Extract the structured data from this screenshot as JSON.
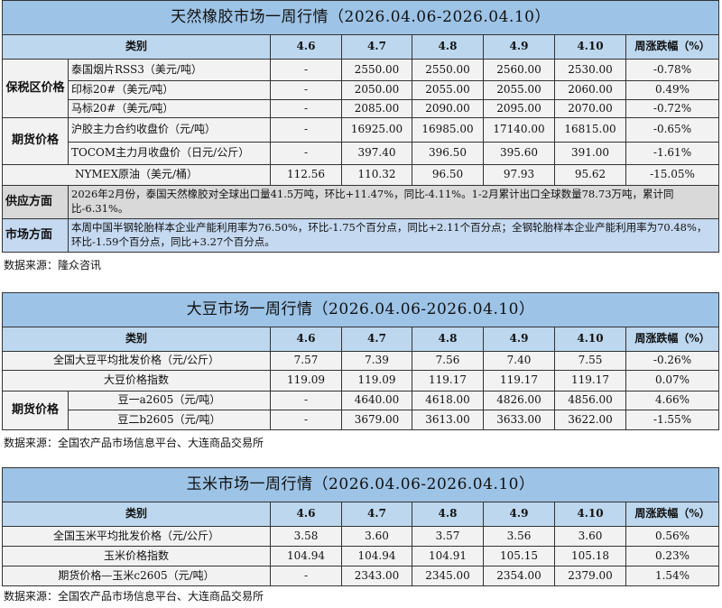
{
  "tables": [
    {
      "title": "天然橡胶市场一周行情（2026.04.06-2026.04.10）",
      "header": [
        "类别",
        "4.6",
        "4.7",
        "4.8",
        "4.9",
        "4.10",
        "周涨跌幅（%）"
      ],
      "rows": [
        {
          "group": "保税区价格",
          "label": "泰国烟片RSS3（美元/吨）",
          "values": [
            "-",
            "2550.00",
            "2550.00",
            "2560.00",
            "2530.00",
            "-0.78%"
          ]
        },
        {
          "group": "保税区价格",
          "label": "印标20#（美元/吨）",
          "values": [
            "-",
            "2050.00",
            "2055.00",
            "2055.00",
            "2060.00",
            "0.49%"
          ]
        },
        {
          "group": "保税区价格",
          "label": "马标20#（美元/吨）",
          "values": [
            "-",
            "2085.00",
            "2090.00",
            "2095.00",
            "2070.00",
            "-0.72%"
          ]
        },
        {
          "group": "期货价格",
          "label": "沪胶主力合约收盘价（元/吨）",
          "values": [
            "-",
            "16925.00",
            "16985.00",
            "17140.00",
            "16815.00",
            "-0.65%"
          ]
        },
        {
          "group": "期货价格",
          "label": "TOCOM主力月收盘价（日元/公斤）",
          "values": [
            "-",
            "397.40",
            "396.50",
            "395.60",
            "391.00",
            "-1.61%"
          ]
        },
        {
          "group": "",
          "label": "NYMEX原油（美元/桶）",
          "values": [
            "112.56",
            "110.32",
            "96.50",
            "97.93",
            "95.62",
            "-15.05%"
          ]
        }
      ],
      "notes": [
        {
          "label": "供应方面",
          "text": "2026年2月份，泰国天然橡胶对全球出口量41.5万吨，环比+11.47%，同比-4.11%。1-2月累计出口全球数量78.73万吨，累计同比-6.31%。"
        },
        {
          "label": "市场方面",
          "text": "本周中国半钢轮胎样本企业产能利用率为76.50%，环比-1.75个百分点，同比+2.11个百分点；全钢轮胎样本企业产能利用率为70.48%，环比-1.59个百分点，同比+3.27个百分点。"
        }
      ],
      "source": "数据来源：隆众咨讯"
    },
    {
      "title": "大豆市场一周行情（2026.04.06-2026.04.10）",
      "header": [
        "类别",
        "4.6",
        "4.7",
        "4.8",
        "4.9",
        "4.10",
        "周涨跌幅（%）"
      ],
      "rows": [
        {
          "group": "",
          "label": "全国大豆平均批发价格（元/公斤）",
          "values": [
            "7.57",
            "7.39",
            "7.56",
            "7.40",
            "7.55",
            "-0.26%"
          ]
        },
        {
          "group": "",
          "label": "大豆价格指数",
          "values": [
            "119.09",
            "119.09",
            "119.17",
            "119.17",
            "119.17",
            "0.07%"
          ]
        },
        {
          "group": "期货价格",
          "label": "豆一a2605（元/吨）",
          "values": [
            "-",
            "4640.00",
            "4618.00",
            "4826.00",
            "4856.00",
            "4.66%"
          ]
        },
        {
          "group": "期货价格",
          "label": "豆二b2605（元/吨）",
          "values": [
            "-",
            "3679.00",
            "3613.00",
            "3633.00",
            "3622.00",
            "-1.55%"
          ]
        }
      ],
      "notes": [],
      "source": "数据来源：全国农产品市场信息平台、大连商品交易所"
    },
    {
      "title": "玉米市场一周行情（2026.04.06-2026.04.10）",
      "header": [
        "类别",
        "4.6",
        "4.7",
        "4.8",
        "4.9",
        "4.10",
        "周涨跌幅（%）"
      ],
      "rows": [
        {
          "group": "",
          "label": "全国玉米平均批发价格（元/公斤）",
          "values": [
            "3.58",
            "3.60",
            "3.57",
            "3.56",
            "3.60",
            "0.56%"
          ]
        },
        {
          "group": "",
          "label": "玉米价格指数",
          "values": [
            "104.94",
            "104.94",
            "104.91",
            "105.15",
            "105.18",
            "0.23%"
          ]
        },
        {
          "group": "",
          "label": "期货价格—玉米c2605（元/吨）",
          "values": [
            "-",
            "2343.00",
            "2345.00",
            "2354.00",
            "2379.00",
            "1.54%"
          ]
        }
      ],
      "notes": [],
      "source": "数据来源：全国农产品市场信息平台、大连商品交易所"
    }
  ]
}
